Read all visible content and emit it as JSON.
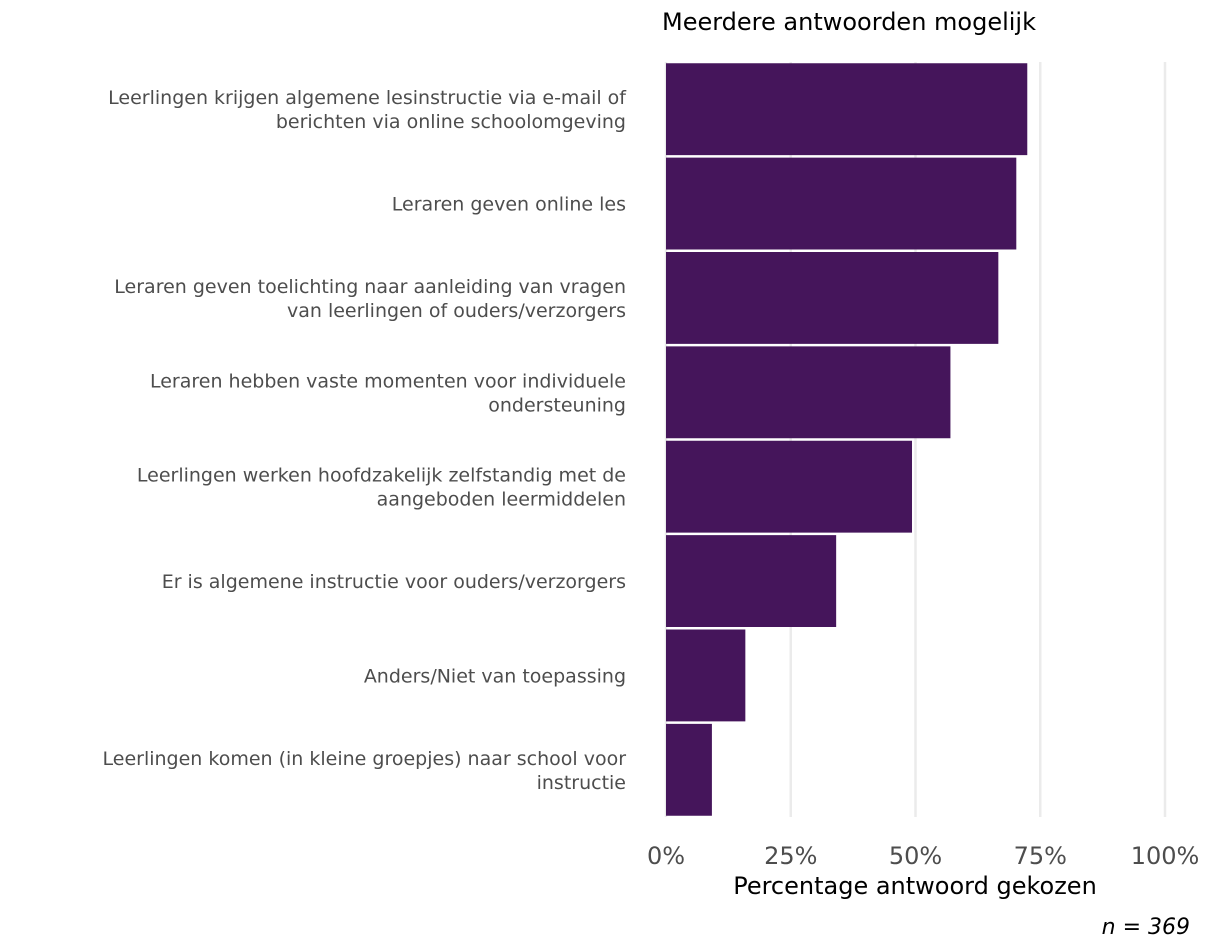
{
  "chart_data": {
    "type": "bar",
    "orientation": "horizontal",
    "title": "Meerdere antwoorden mogelijk",
    "xlabel": "Percentage antwoord gekozen",
    "ylabel": "",
    "caption": "n = 369",
    "xlim": [
      0,
      100
    ],
    "ticks": [
      0,
      25,
      50,
      75,
      100
    ],
    "tick_labels": [
      "0%",
      "25%",
      "50%",
      "75%",
      "100%"
    ],
    "grid": true,
    "bar_color": "#45155b",
    "categories": [
      [
        "Leerlingen krijgen algemene lesinstructie via e-mail of",
        "berichten via online schoolomgeving"
      ],
      [
        "Leraren geven online les"
      ],
      [
        "Leraren geven toelichting naar aanleiding van vragen",
        "van leerlingen of ouders/verzorgers"
      ],
      [
        "Leraren hebben vaste momenten voor individuele",
        "ondersteuning"
      ],
      [
        "Leerlingen werken hoofdzakelijk zelfstandig met de",
        "aangeboden leermiddelen"
      ],
      [
        "Er is algemene instructie voor ouders/verzorgers"
      ],
      [
        "Anders/Niet van toepassing"
      ],
      [
        "Leerlingen komen (in kleine groepjes) naar school voor",
        "instructie"
      ]
    ],
    "values": [
      72.4,
      70.2,
      66.6,
      57.0,
      49.3,
      34.1,
      15.9,
      9.2
    ]
  }
}
